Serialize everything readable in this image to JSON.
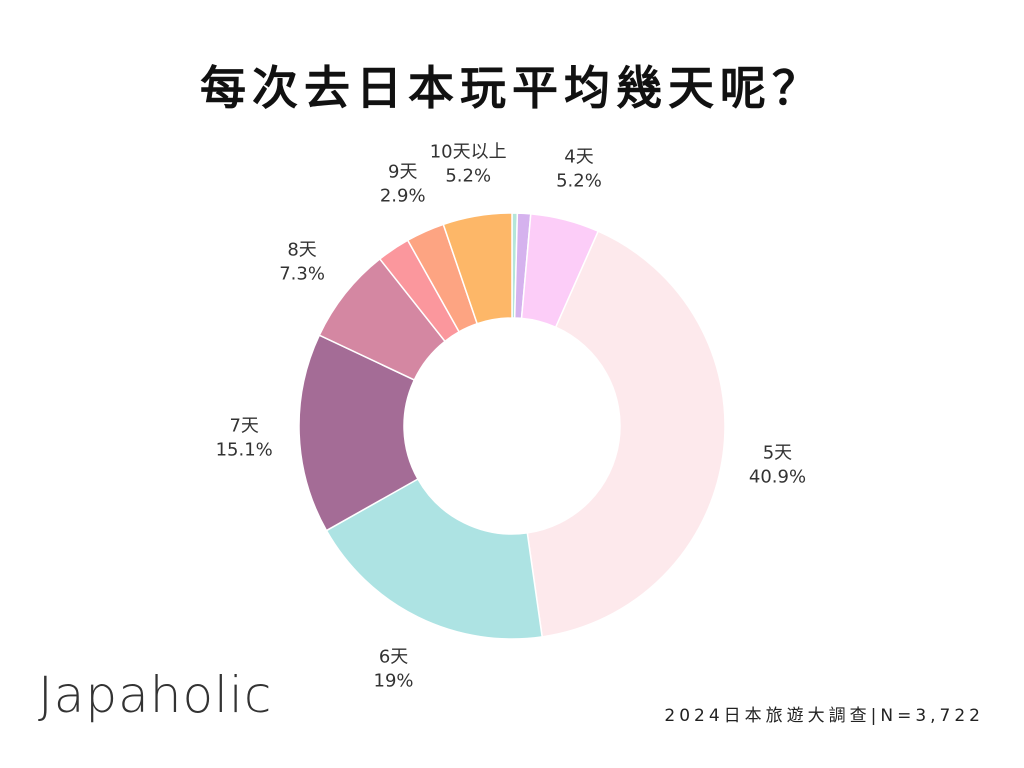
{
  "title": "每次去日本玩平均幾天呢？",
  "brand": "Japaholic",
  "footer": "2024日本旅遊大調查|N=3,722",
  "chart_data": {
    "type": "pie",
    "donut": true,
    "title": "每次去日本玩平均幾天呢？",
    "slices": [
      {
        "label": "",
        "value": 0.4,
        "percent_label": "",
        "color": "#b5e6d9"
      },
      {
        "label": "",
        "value": 1.0,
        "percent_label": "",
        "color": "#d5b2ee"
      },
      {
        "label": "4天",
        "value": 5.2,
        "percent_label": "5.2%",
        "color": "#fccdf8"
      },
      {
        "label": "5天",
        "value": 40.9,
        "percent_label": "40.9%",
        "color": "#fde9ec"
      },
      {
        "label": "6天",
        "value": 19,
        "percent_label": "19%",
        "color": "#ade3e3"
      },
      {
        "label": "7天",
        "value": 15.1,
        "percent_label": "15.1%",
        "color": "#a46c96"
      },
      {
        "label": "8天",
        "value": 7.3,
        "percent_label": "7.3%",
        "color": "#d487a2"
      },
      {
        "label": "",
        "value": 2.5,
        "percent_label": "",
        "color": "#fb979d"
      },
      {
        "label": "9天",
        "value": 2.9,
        "percent_label": "2.9%",
        "color": "#fda482"
      },
      {
        "label": "10天以上",
        "value": 5.2,
        "percent_label": "5.2%",
        "color": "#fdb768"
      }
    ]
  }
}
